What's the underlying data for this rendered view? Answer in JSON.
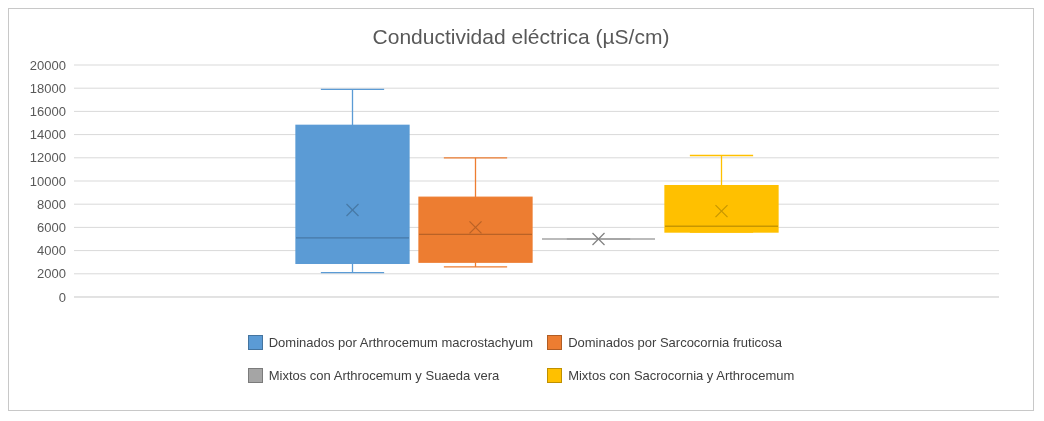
{
  "chart_data": {
    "type": "box",
    "title": "Conductividad eléctrica (µS/cm)",
    "categories": [
      null
    ],
    "series": [
      {
        "name": "Dominados por Arthrocemum macrostachyum",
        "color": "#5b9bd5",
        "boxes": [
          {
            "low": 2100,
            "q1": 2900,
            "median": 5100,
            "q3": 14800,
            "high": 17900,
            "mean": 7500
          }
        ]
      },
      {
        "name": "Dominados por Sarcocornia fruticosa",
        "color": "#ed7d31",
        "boxes": [
          {
            "low": 2600,
            "q1": 3000,
            "median": 5400,
            "q3": 8600,
            "high": 12000,
            "mean": 6000
          }
        ]
      },
      {
        "name": "Mixtos con Arthrocemum y Suaeda vera",
        "color": "#a5a5a5",
        "boxes": [
          {
            "low": 5000,
            "q1": 5000,
            "median": 5000,
            "q3": 5000,
            "high": 5000,
            "mean": 5000
          }
        ]
      },
      {
        "name": "Mixtos con Sacrocornia y Arthrocemum",
        "color": "#ffc000",
        "boxes": [
          {
            "low": 5600,
            "q1": 5600,
            "median": 6100,
            "q3": 9600,
            "high": 12200,
            "mean": 7400
          }
        ]
      }
    ],
    "ylim": [
      0,
      20000
    ],
    "yticks": [
      0,
      2000,
      4000,
      6000,
      8000,
      10000,
      12000,
      14000,
      16000,
      18000,
      20000
    ],
    "grid": "y",
    "legend": "bottom"
  }
}
